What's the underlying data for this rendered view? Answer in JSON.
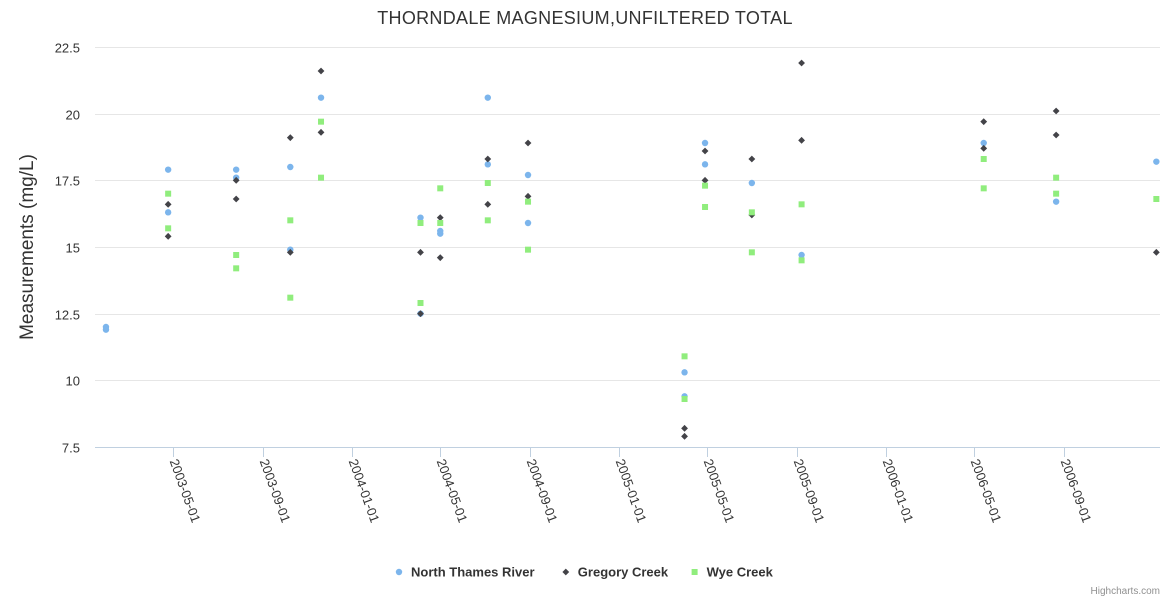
{
  "chart_data": {
    "type": "scatter",
    "title": "THORNDALE MAGNESIUM,UNFILTERED TOTAL",
    "ylabel": "Measurements (mg/L)",
    "xlabel": "",
    "ylim": [
      7.5,
      22.5
    ],
    "yticks": [
      7.5,
      10,
      12.5,
      15,
      17.5,
      20,
      22.5
    ],
    "ytick_labels": [
      "7.5",
      "10",
      "12.5",
      "15",
      "17.5",
      "20",
      "22.5"
    ],
    "xlim": [
      "2003-01-15",
      "2007-01-10"
    ],
    "xticks": [
      "2003-05-01",
      "2003-09-01",
      "2004-01-01",
      "2004-05-01",
      "2004-09-01",
      "2005-01-01",
      "2005-05-01",
      "2005-09-01",
      "2006-01-01",
      "2006-05-01",
      "2006-09-01"
    ],
    "grid": true,
    "legend_position": "bottom-center",
    "series": [
      {
        "name": "North Thames River",
        "marker": "circle",
        "color": "#7cb5ec",
        "points": [
          [
            "2003-01-30",
            12.0
          ],
          [
            "2003-01-30",
            11.9
          ],
          [
            "2003-04-25",
            17.9
          ],
          [
            "2003-04-25",
            16.3
          ],
          [
            "2003-07-27",
            17.9
          ],
          [
            "2003-07-27",
            17.6
          ],
          [
            "2003-10-09",
            18.0
          ],
          [
            "2003-10-09",
            14.9
          ],
          [
            "2003-11-20",
            20.6
          ],
          [
            "2004-04-04",
            16.1
          ],
          [
            "2004-04-04",
            12.5
          ],
          [
            "2004-05-01",
            15.6
          ],
          [
            "2004-05-01",
            15.5
          ],
          [
            "2004-07-05",
            20.6
          ],
          [
            "2004-07-05",
            18.1
          ],
          [
            "2004-08-29",
            17.7
          ],
          [
            "2004-08-29",
            15.9
          ],
          [
            "2005-03-31",
            10.3
          ],
          [
            "2005-03-31",
            9.4
          ],
          [
            "2005-04-28",
            18.9
          ],
          [
            "2005-04-28",
            18.1
          ],
          [
            "2005-07-01",
            17.4
          ],
          [
            "2005-09-07",
            14.7
          ],
          [
            "2006-05-14",
            18.9
          ],
          [
            "2006-08-21",
            16.7
          ],
          [
            "2007-01-05",
            18.2
          ]
        ]
      },
      {
        "name": "Gregory Creek",
        "marker": "diamond",
        "color": "#434348",
        "points": [
          [
            "2003-04-25",
            16.6
          ],
          [
            "2003-04-25",
            15.4
          ],
          [
            "2003-07-27",
            17.5
          ],
          [
            "2003-07-27",
            16.8
          ],
          [
            "2003-10-09",
            19.1
          ],
          [
            "2003-10-09",
            14.8
          ],
          [
            "2003-11-20",
            21.6
          ],
          [
            "2003-11-20",
            19.3
          ],
          [
            "2004-04-04",
            14.8
          ],
          [
            "2004-04-04",
            12.5
          ],
          [
            "2004-05-01",
            16.1
          ],
          [
            "2004-05-01",
            14.6
          ],
          [
            "2004-07-05",
            18.3
          ],
          [
            "2004-07-05",
            16.6
          ],
          [
            "2004-08-29",
            18.9
          ],
          [
            "2004-08-29",
            16.9
          ],
          [
            "2005-03-31",
            8.2
          ],
          [
            "2005-03-31",
            7.9
          ],
          [
            "2005-04-28",
            18.6
          ],
          [
            "2005-04-28",
            17.5
          ],
          [
            "2005-07-01",
            18.3
          ],
          [
            "2005-07-01",
            16.2
          ],
          [
            "2005-09-07",
            21.9
          ],
          [
            "2005-09-07",
            19.0
          ],
          [
            "2006-05-14",
            19.7
          ],
          [
            "2006-05-14",
            18.7
          ],
          [
            "2006-08-21",
            20.1
          ],
          [
            "2006-08-21",
            19.2
          ],
          [
            "2007-01-05",
            14.8
          ]
        ]
      },
      {
        "name": "Wye Creek",
        "marker": "square",
        "color": "#90ed7d",
        "points": [
          [
            "2003-04-25",
            17.0
          ],
          [
            "2003-04-25",
            15.7
          ],
          [
            "2003-07-27",
            14.7
          ],
          [
            "2003-07-27",
            14.2
          ],
          [
            "2003-10-09",
            16.0
          ],
          [
            "2003-10-09",
            13.1
          ],
          [
            "2003-11-20",
            19.7
          ],
          [
            "2003-11-20",
            17.6
          ],
          [
            "2004-04-04",
            15.9
          ],
          [
            "2004-04-04",
            12.9
          ],
          [
            "2004-05-01",
            17.2
          ],
          [
            "2004-05-01",
            15.9
          ],
          [
            "2004-07-05",
            17.4
          ],
          [
            "2004-07-05",
            16.0
          ],
          [
            "2004-08-29",
            16.7
          ],
          [
            "2004-08-29",
            14.9
          ],
          [
            "2005-03-31",
            10.9
          ],
          [
            "2005-03-31",
            9.3
          ],
          [
            "2005-04-28",
            17.3
          ],
          [
            "2005-04-28",
            16.5
          ],
          [
            "2005-07-01",
            16.3
          ],
          [
            "2005-07-01",
            14.8
          ],
          [
            "2005-09-07",
            16.6
          ],
          [
            "2005-09-07",
            14.5
          ],
          [
            "2006-05-14",
            18.3
          ],
          [
            "2006-05-14",
            17.2
          ],
          [
            "2006-08-21",
            17.6
          ],
          [
            "2006-08-21",
            17.0
          ],
          [
            "2007-01-05",
            16.8
          ]
        ]
      }
    ],
    "credit": "Highcharts.com"
  }
}
